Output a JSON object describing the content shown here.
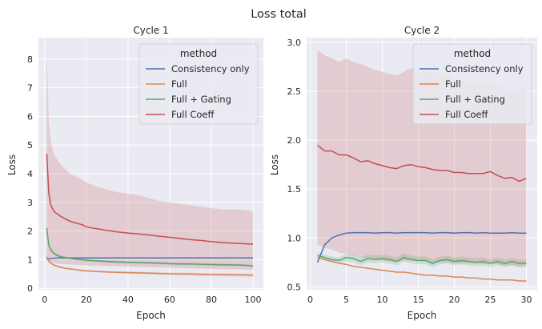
{
  "figure": {
    "title": "Loss total"
  },
  "chart_data": [
    {
      "type": "line",
      "title": "Cycle 1",
      "xlabel": "Epoch",
      "ylabel": "Loss",
      "xlim": [
        -3,
        105
      ],
      "ylim": [
        -0.05,
        8.75
      ],
      "xticks": [
        0,
        20,
        40,
        60,
        80,
        100
      ],
      "yticks": [
        0,
        1,
        2,
        3,
        4,
        5,
        6,
        7,
        8
      ],
      "grid": true,
      "legend_title": "method",
      "legend_position": "top-right",
      "x": [
        1,
        2,
        3,
        4,
        5,
        6,
        7,
        8,
        10,
        12,
        15,
        18,
        20,
        25,
        30,
        35,
        40,
        45,
        50,
        55,
        60,
        65,
        70,
        75,
        80,
        85,
        90,
        95,
        100
      ],
      "series": [
        {
          "name": "Consistency only",
          "color": "#4c72b0",
          "values": [
            1.0,
            1.03,
            1.04,
            1.05,
            1.05,
            1.06,
            1.06,
            1.06,
            1.06,
            1.06,
            1.06,
            1.06,
            1.06,
            1.06,
            1.06,
            1.06,
            1.06,
            1.06,
            1.06,
            1.06,
            1.06,
            1.06,
            1.06,
            1.06,
            1.06,
            1.06,
            1.06,
            1.06,
            1.06
          ]
        },
        {
          "name": "Full",
          "color": "#dd8452",
          "values": [
            1.1,
            0.95,
            0.88,
            0.83,
            0.8,
            0.77,
            0.75,
            0.73,
            0.7,
            0.68,
            0.65,
            0.62,
            0.61,
            0.59,
            0.57,
            0.56,
            0.55,
            0.54,
            0.53,
            0.52,
            0.51,
            0.5,
            0.5,
            0.49,
            0.48,
            0.48,
            0.47,
            0.47,
            0.46
          ],
          "lower": [
            1.0,
            0.9,
            0.84,
            0.8,
            0.77,
            0.74,
            0.72,
            0.7,
            0.67,
            0.65,
            0.62,
            0.59,
            0.58,
            0.56,
            0.54,
            0.52,
            0.51,
            0.5,
            0.49,
            0.48,
            0.47,
            0.46,
            0.45,
            0.44,
            0.43,
            0.42,
            0.41,
            0.41,
            0.4
          ],
          "upper": [
            1.2,
            1.0,
            0.92,
            0.86,
            0.83,
            0.8,
            0.78,
            0.76,
            0.73,
            0.71,
            0.68,
            0.65,
            0.64,
            0.62,
            0.6,
            0.6,
            0.59,
            0.58,
            0.57,
            0.56,
            0.55,
            0.55,
            0.55,
            0.54,
            0.53,
            0.53,
            0.53,
            0.52,
            0.52
          ]
        },
        {
          "name": "Full + Gating",
          "color": "#55a868",
          "values": [
            2.1,
            1.5,
            1.35,
            1.25,
            1.2,
            1.15,
            1.12,
            1.1,
            1.07,
            1.05,
            1.02,
            1.0,
            0.98,
            0.96,
            0.94,
            0.92,
            0.91,
            0.9,
            0.89,
            0.88,
            0.86,
            0.85,
            0.85,
            0.84,
            0.83,
            0.82,
            0.82,
            0.81,
            0.78
          ],
          "lower": [
            2.0,
            1.45,
            1.3,
            1.2,
            1.15,
            1.1,
            1.08,
            1.06,
            1.03,
            1.01,
            0.98,
            0.96,
            0.94,
            0.92,
            0.9,
            0.88,
            0.87,
            0.86,
            0.85,
            0.84,
            0.82,
            0.81,
            0.81,
            0.8,
            0.79,
            0.78,
            0.78,
            0.77,
            0.74
          ],
          "upper": [
            2.2,
            1.55,
            1.4,
            1.3,
            1.25,
            1.2,
            1.16,
            1.14,
            1.11,
            1.09,
            1.06,
            1.04,
            1.02,
            1.0,
            0.98,
            0.96,
            0.95,
            0.94,
            0.93,
            0.92,
            0.9,
            0.89,
            0.89,
            0.88,
            0.87,
            0.86,
            0.86,
            0.85,
            0.82
          ]
        },
        {
          "name": "Full Coeff",
          "color": "#c44e52",
          "values": [
            4.7,
            3.3,
            2.9,
            2.75,
            2.65,
            2.6,
            2.55,
            2.5,
            2.42,
            2.35,
            2.28,
            2.22,
            2.15,
            2.08,
            2.02,
            1.97,
            1.93,
            1.9,
            1.86,
            1.82,
            1.78,
            1.74,
            1.7,
            1.67,
            1.63,
            1.6,
            1.58,
            1.56,
            1.54
          ],
          "lower": [
            1.0,
            0.95,
            0.92,
            0.9,
            0.88,
            0.86,
            0.85,
            0.85,
            0.84,
            0.83,
            0.82,
            0.81,
            0.8,
            0.79,
            0.78,
            0.77,
            0.76,
            0.75,
            0.74,
            0.73,
            0.72,
            0.71,
            0.7,
            0.69,
            0.68,
            0.67,
            0.66,
            0.66,
            0.65
          ],
          "upper": [
            8.3,
            5.8,
            5.1,
            4.8,
            4.6,
            4.5,
            4.4,
            4.3,
            4.15,
            4.0,
            3.9,
            3.8,
            3.7,
            3.55,
            3.45,
            3.35,
            3.3,
            3.25,
            3.15,
            3.05,
            3.0,
            2.95,
            2.9,
            2.85,
            2.8,
            2.75,
            2.75,
            2.75,
            2.7
          ]
        }
      ]
    },
    {
      "type": "line",
      "title": "Cycle 2",
      "xlabel": "Epoch",
      "ylabel": "Loss",
      "xlim": [
        -0.5,
        31.5
      ],
      "ylim": [
        0.47,
        3.05
      ],
      "xticks": [
        0,
        5,
        10,
        15,
        20,
        25,
        30
      ],
      "yticks": [
        0.5,
        1.0,
        1.5,
        2.0,
        2.5,
        3.0
      ],
      "ytick_labels": [
        "0.5",
        "1.0",
        "1.5",
        "2.0",
        "2.5",
        "3.0"
      ],
      "grid": true,
      "legend_title": "method",
      "legend_position": "top-right",
      "x": [
        1,
        2,
        3,
        4,
        5,
        6,
        7,
        8,
        9,
        10,
        11,
        12,
        13,
        14,
        15,
        16,
        17,
        18,
        19,
        20,
        21,
        22,
        23,
        24,
        25,
        26,
        27,
        28,
        29,
        30
      ],
      "series": [
        {
          "name": "Consistency only",
          "color": "#4c72b0",
          "values": [
            0.75,
            0.93,
            1.0,
            1.03,
            1.05,
            1.055,
            1.055,
            1.055,
            1.05,
            1.055,
            1.055,
            1.05,
            1.055,
            1.055,
            1.055,
            1.055,
            1.05,
            1.055,
            1.055,
            1.05,
            1.055,
            1.055,
            1.05,
            1.055,
            1.05,
            1.05,
            1.05,
            1.055,
            1.05,
            1.05
          ]
        },
        {
          "name": "Full",
          "color": "#dd8452",
          "values": [
            0.8,
            0.78,
            0.76,
            0.74,
            0.73,
            0.71,
            0.7,
            0.69,
            0.68,
            0.67,
            0.66,
            0.65,
            0.65,
            0.64,
            0.63,
            0.62,
            0.62,
            0.61,
            0.61,
            0.6,
            0.6,
            0.59,
            0.59,
            0.58,
            0.58,
            0.57,
            0.57,
            0.57,
            0.56,
            0.56
          ]
        },
        {
          "name": "Full + Gating",
          "color": "#55a868",
          "values": [
            0.82,
            0.8,
            0.78,
            0.77,
            0.8,
            0.79,
            0.76,
            0.79,
            0.78,
            0.79,
            0.78,
            0.76,
            0.8,
            0.78,
            0.77,
            0.77,
            0.74,
            0.77,
            0.78,
            0.76,
            0.77,
            0.76,
            0.75,
            0.76,
            0.74,
            0.76,
            0.74,
            0.76,
            0.74,
            0.74
          ],
          "lower": [
            0.79,
            0.77,
            0.75,
            0.74,
            0.76,
            0.75,
            0.72,
            0.75,
            0.74,
            0.75,
            0.74,
            0.72,
            0.76,
            0.74,
            0.73,
            0.73,
            0.7,
            0.73,
            0.74,
            0.72,
            0.73,
            0.72,
            0.71,
            0.72,
            0.7,
            0.72,
            0.7,
            0.72,
            0.7,
            0.7
          ],
          "upper": [
            0.85,
            0.83,
            0.81,
            0.8,
            0.84,
            0.83,
            0.8,
            0.83,
            0.82,
            0.83,
            0.82,
            0.8,
            0.84,
            0.82,
            0.81,
            0.81,
            0.78,
            0.81,
            0.82,
            0.8,
            0.81,
            0.8,
            0.79,
            0.8,
            0.78,
            0.8,
            0.78,
            0.8,
            0.78,
            0.78
          ]
        },
        {
          "name": "Full Coeff",
          "color": "#c44e52",
          "values": [
            1.95,
            1.89,
            1.89,
            1.85,
            1.85,
            1.82,
            1.78,
            1.79,
            1.76,
            1.74,
            1.72,
            1.71,
            1.74,
            1.75,
            1.73,
            1.72,
            1.7,
            1.69,
            1.69,
            1.67,
            1.67,
            1.66,
            1.66,
            1.66,
            1.68,
            1.64,
            1.61,
            1.62,
            1.58,
            1.61
          ],
          "lower": [
            0.93,
            0.9,
            0.88,
            0.85,
            0.84,
            0.82,
            0.8,
            0.79,
            0.78,
            0.77,
            0.76,
            0.76,
            0.77,
            0.77,
            0.76,
            0.76,
            0.75,
            0.75,
            0.75,
            0.74,
            0.74,
            0.74,
            0.74,
            0.73,
            0.74,
            0.73,
            0.72,
            0.72,
            0.71,
            0.72
          ],
          "upper": [
            2.92,
            2.87,
            2.84,
            2.8,
            2.84,
            2.8,
            2.78,
            2.75,
            2.72,
            2.7,
            2.68,
            2.66,
            2.7,
            2.74,
            2.72,
            2.7,
            2.7,
            2.68,
            2.66,
            2.62,
            2.62,
            2.58,
            2.58,
            2.6,
            2.62,
            2.56,
            2.52,
            2.52,
            2.5,
            2.55
          ]
        }
      ]
    }
  ]
}
